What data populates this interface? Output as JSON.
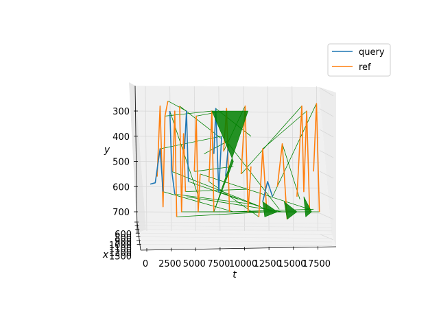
{
  "chart_data": {
    "type": "line",
    "projection": "3d",
    "title": "",
    "xlabel": "t",
    "ylabel": "y",
    "zlabel": "x",
    "t_ticks": [
      "0",
      "2500",
      "5000",
      "7500",
      "10000",
      "12500",
      "15000",
      "17500"
    ],
    "y_ticks": [
      "300",
      "400",
      "500",
      "600",
      "700"
    ],
    "x_ticks": [
      "600",
      "800",
      "900",
      "1000",
      "1100",
      "1200",
      "1300"
    ],
    "t_range": [
      -1000,
      18500
    ],
    "y_range": [
      220,
      780
    ],
    "grid": true,
    "legend_position": "top-right",
    "series": [
      {
        "name": "query",
        "color": "#1f77b4",
        "segments": [
          [
            [
              500,
              590
            ],
            [
              1000,
              585
            ],
            [
              1500,
              450
            ],
            [
              1800,
              620
            ]
          ],
          [
            [
              2500,
              300
            ],
            [
              2700,
              540
            ],
            [
              3000,
              630
            ]
          ],
          [
            [
              4000,
              450
            ],
            [
              4200,
              300
            ],
            [
              4400,
              580
            ]
          ],
          [
            [
              7000,
              470
            ],
            [
              7200,
              290
            ],
            [
              7500,
              620
            ],
            [
              7800,
              400
            ]
          ],
          [
            [
              8200,
              560
            ],
            [
              8500,
              430
            ]
          ],
          [
            [
              12000,
              660
            ],
            [
              12500,
              580
            ],
            [
              13000,
              640
            ]
          ]
        ]
      },
      {
        "name": "ref",
        "color": "#ff7f0e",
        "segments": [
          [
            [
              1200,
              560
            ],
            [
              1500,
              280
            ],
            [
              1800,
              680
            ],
            [
              2000,
              320
            ],
            [
              2300,
              260
            ]
          ],
          [
            [
              2800,
              540
            ],
            [
              3000,
              300
            ],
            [
              3200,
              720
            ]
          ],
          [
            [
              3500,
              280
            ],
            [
              3700,
              700
            ],
            [
              3900,
              390
            ],
            [
              4100,
              620
            ]
          ],
          [
            [
              5000,
              540
            ],
            [
              5200,
              320
            ],
            [
              5400,
              700
            ],
            [
              5600,
              550
            ]
          ],
          [
            [
              6500,
              580
            ],
            [
              6800,
              300
            ],
            [
              7000,
              700
            ]
          ],
          [
            [
              8000,
              460
            ],
            [
              8300,
              290
            ],
            [
              8600,
              700
            ]
          ],
          [
            [
              9800,
              550
            ],
            [
              10200,
              280
            ],
            [
              10500,
              700
            ],
            [
              10800,
              520
            ]
          ],
          [
            [
              11600,
              720
            ],
            [
              12000,
              450
            ],
            [
              12400,
              690
            ]
          ],
          [
            [
              13500,
              600
            ],
            [
              14000,
              430
            ],
            [
              14500,
              730
            ]
          ],
          [
            [
              15500,
              640
            ],
            [
              16000,
              280
            ],
            [
              16200,
              620
            ],
            [
              16500,
              300
            ],
            [
              16800,
              700
            ]
          ],
          [
            [
              17200,
              540
            ],
            [
              17500,
              270
            ],
            [
              17800,
              700
            ]
          ]
        ]
      },
      {
        "name": "",
        "color": "#008000",
        "pairs": [
          [
            [
              2000,
              320
            ],
            [
              6800,
              300
            ]
          ],
          [
            [
              2300,
              260
            ],
            [
              4200,
              300
            ]
          ],
          [
            [
              1500,
              450
            ],
            [
              7800,
              400
            ]
          ],
          [
            [
              3000,
              630
            ],
            [
              11000,
              670
            ]
          ],
          [
            [
              3200,
              720
            ],
            [
              12500,
              700
            ]
          ],
          [
            [
              3700,
              700
            ],
            [
              14500,
              700
            ]
          ],
          [
            [
              4400,
              580
            ],
            [
              9500,
              650
            ]
          ],
          [
            [
              5400,
              700
            ],
            [
              13500,
              700
            ]
          ],
          [
            [
              5600,
              550
            ],
            [
              16800,
              690
            ]
          ],
          [
            [
              6500,
              580
            ],
            [
              11600,
              720
            ]
          ],
          [
            [
              7000,
              700
            ],
            [
              15500,
              700
            ]
          ],
          [
            [
              7200,
              290
            ],
            [
              10800,
              400
            ]
          ],
          [
            [
              7500,
              620
            ],
            [
              12400,
              690
            ]
          ],
          [
            [
              8000,
              460
            ],
            [
              10200,
              280
            ]
          ],
          [
            [
              8600,
              700
            ],
            [
              17200,
              690
            ]
          ],
          [
            [
              9800,
              550
            ],
            [
              16000,
              280
            ]
          ],
          [
            [
              10500,
              700
            ],
            [
              17800,
              700
            ]
          ],
          [
            [
              12000,
              450
            ],
            [
              16500,
              300
            ]
          ],
          [
            [
              13000,
              640
            ],
            [
              17500,
              270
            ]
          ],
          [
            [
              14000,
              430
            ],
            [
              15800,
              650
            ]
          ],
          [
            [
              1800,
              620
            ],
            [
              9000,
              700
            ]
          ],
          [
            [
              2700,
              540
            ],
            [
              11800,
              680
            ]
          ],
          [
            [
              4100,
              620
            ],
            [
              10400,
              610
            ]
          ],
          [
            [
              5000,
              540
            ],
            [
              9000,
              520
            ]
          ],
          [
            [
              6000,
              470
            ],
            [
              8400,
              420
            ]
          ],
          [
            [
              4200,
              640
            ],
            [
              14000,
              700
            ]
          ],
          [
            [
              3500,
              280
            ],
            [
              7800,
              410
            ]
          ],
          [
            [
              8500,
              430
            ],
            [
              13700,
              690
            ]
          ],
          [
            [
              5200,
              320
            ],
            [
              8000,
              300
            ]
          ],
          [
            [
              2500,
              300
            ],
            [
              5600,
              660
            ]
          ]
        ]
      }
    ]
  },
  "legend": {
    "query": "query",
    "ref": "ref"
  }
}
